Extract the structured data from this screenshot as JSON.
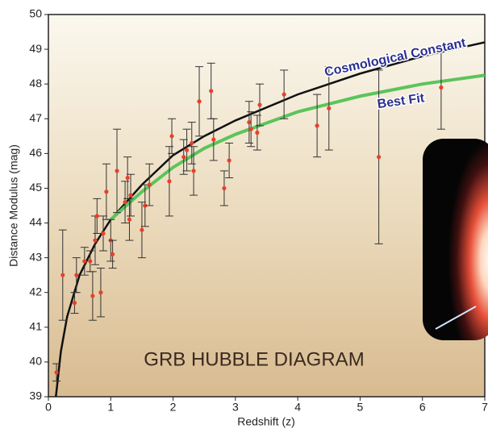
{
  "chart_data": {
    "type": "scatter",
    "title": "GRB HUBBLE DIAGRAM",
    "x_label": "Redshift (z)",
    "y_label": "Distance Modulus (mag)",
    "xlim": [
      0,
      7
    ],
    "ylim": [
      39,
      50
    ],
    "xticks": [
      0,
      1,
      2,
      3,
      4,
      5,
      6,
      7
    ],
    "yticks": [
      39,
      40,
      41,
      42,
      43,
      44,
      45,
      46,
      47,
      48,
      49,
      50
    ],
    "color": "#e8402a",
    "error_color": "#333333",
    "x": [
      0.13,
      0.23,
      0.42,
      0.45,
      0.58,
      0.67,
      0.71,
      0.75,
      0.78,
      0.84,
      0.88,
      0.93,
      1.0,
      1.03,
      1.1,
      1.23,
      1.27,
      1.3,
      1.32,
      1.5,
      1.55,
      1.62,
      1.94,
      1.98,
      2.17,
      2.22,
      2.3,
      2.42,
      2.33,
      2.61,
      2.65,
      2.82,
      2.9,
      3.22,
      3.25,
      3.35,
      3.39,
      3.78,
      4.31,
      4.5,
      5.3,
      6.3
    ],
    "values": [
      39.7,
      42.5,
      41.7,
      42.5,
      42.9,
      42.9,
      41.9,
      43.5,
      44.2,
      42.0,
      43.7,
      44.9,
      43.5,
      43.1,
      45.5,
      44.6,
      45.3,
      44.1,
      44.8,
      43.8,
      44.5,
      45.1,
      45.2,
      46.5,
      45.9,
      46.1,
      46.3,
      47.5,
      45.5,
      47.8,
      46.4,
      45.0,
      45.8,
      46.9,
      46.7,
      46.6,
      47.4,
      47.7,
      46.8,
      47.3,
      45.9,
      47.9
    ],
    "errors": [
      0.25,
      1.3,
      0.3,
      0.5,
      0.4,
      0.3,
      0.7,
      0.7,
      0.5,
      0.7,
      0.5,
      0.8,
      0.6,
      0.4,
      1.2,
      0.6,
      0.6,
      0.6,
      0.6,
      0.8,
      0.6,
      0.6,
      1.0,
      0.5,
      0.5,
      0.6,
      0.6,
      1.0,
      0.7,
      0.8,
      0.6,
      0.5,
      0.5,
      0.6,
      0.5,
      0.5,
      0.6,
      0.7,
      0.9,
      1.2,
      2.5,
      1.2
    ],
    "curves": [
      {
        "name": "Cosmological Constant",
        "color": "#111111",
        "x": [
          0.12,
          0.2,
          0.3,
          0.5,
          0.75,
          1,
          1.5,
          2,
          2.5,
          3,
          4,
          5,
          6,
          7
        ],
        "values": [
          39,
          40.3,
          41.3,
          42.5,
          43.4,
          44.1,
          45.1,
          45.95,
          46.5,
          46.95,
          47.7,
          48.3,
          48.8,
          49.2
        ]
      },
      {
        "name": "Best Fit",
        "color": "#5cc45a",
        "x": [
          1,
          1.5,
          2,
          2.5,
          3,
          4,
          5,
          6,
          7
        ],
        "values": [
          44.1,
          44.9,
          45.6,
          46.15,
          46.55,
          47.2,
          47.65,
          48.0,
          48.25
        ]
      }
    ]
  }
}
